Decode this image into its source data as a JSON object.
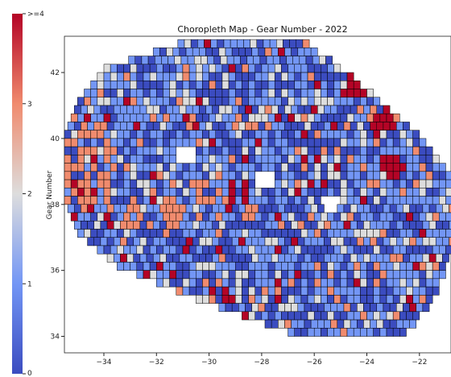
{
  "chart_data": {
    "type": "heatmap",
    "title": "Choropleth Map - Gear Number - 2022",
    "colorbar": {
      "label": "Gear Number",
      "ticks": [
        "0",
        "1",
        "2",
        "3",
        ">=4"
      ],
      "range": [
        0,
        4
      ],
      "colors": [
        "#3b4cc0",
        "#7396f5",
        "#dddddd",
        "#f08b6e",
        "#b40426"
      ]
    },
    "x_ticks": [
      "−34",
      "−32",
      "−30",
      "−28",
      "−26",
      "−24",
      "−22"
    ],
    "y_ticks": [
      "34",
      "36",
      "38",
      "40",
      "42"
    ],
    "xlim": [
      -35.5,
      -20.8
    ],
    "ylim": [
      33.5,
      43.1
    ],
    "grid": false,
    "cell_edge_color": "#000000",
    "description_rows": [
      {
        "y": 42.8,
        "x_from": -31.0,
        "x_to": -26.5
      },
      {
        "y": 42.0,
        "x_from": -34.0,
        "x_to": -25.0
      },
      {
        "y": 41.0,
        "x_from": -35.0,
        "x_to": -23.5
      },
      {
        "y": 40.0,
        "x_from": -35.5,
        "x_to": -22.0
      },
      {
        "y": 39.0,
        "x_from": -35.5,
        "x_to": -21.0
      },
      {
        "y": 38.0,
        "x_from": -35.5,
        "x_to": -20.8
      },
      {
        "y": 37.0,
        "x_from": -35.0,
        "x_to": -20.8
      },
      {
        "y": 36.0,
        "x_from": -33.5,
        "x_to": -21.0
      },
      {
        "y": 35.0,
        "x_from": -30.5,
        "x_to": -21.5
      },
      {
        "y": 34.0,
        "x_from": -27.0,
        "x_to": -22.5
      }
    ],
    "hotspots": [
      {
        "x": -23.2,
        "y": 39.0,
        "value": 4
      },
      {
        "x": -35.0,
        "y": 38.5,
        "value": 4
      },
      {
        "x": -29.0,
        "y": 38.2,
        "value": 4
      },
      {
        "x": -23.5,
        "y": 40.3,
        "value": 4
      },
      {
        "x": -24.5,
        "y": 41.5,
        "value": 4
      },
      {
        "x": -33.0,
        "y": 37.5,
        "value": 3
      },
      {
        "x": -31.5,
        "y": 37.6,
        "value": 3
      },
      {
        "x": -30.5,
        "y": 38.3,
        "value": 3
      }
    ],
    "holes": [
      {
        "x": -31.0,
        "y": 39.4
      },
      {
        "x": -28.0,
        "y": 38.6
      },
      {
        "x": -25.5,
        "y": 37.9
      }
    ]
  }
}
